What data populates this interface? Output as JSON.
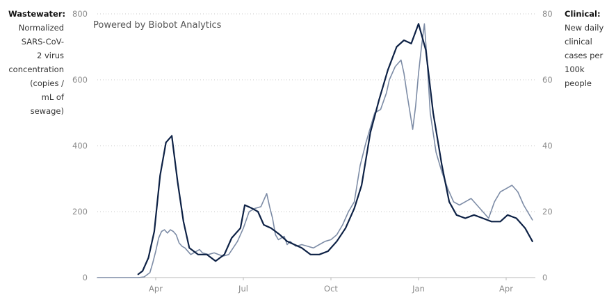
{
  "left_axis_label": {
    "head": "Wastewater:",
    "lines": [
      "Normalized",
      "SARS-CoV-",
      "2 virus",
      "concentration",
      "(copies /",
      "mL of",
      "sewage)"
    ]
  },
  "right_axis_label": {
    "head": "Clinical:",
    "lines": [
      "New daily",
      "clinical",
      "cases per",
      "100k",
      "people"
    ]
  },
  "watermark": "Powered by Biobot Analytics",
  "chart_data": {
    "type": "line",
    "x_ticks": [
      "Apr",
      "Jul",
      "Oct",
      "Jan",
      "Apr"
    ],
    "x_tick_months": [
      3,
      6,
      9,
      12,
      15
    ],
    "xlim_months": [
      1.0,
      16.0
    ],
    "y_left_ticks": [
      "0",
      "200",
      "400",
      "600",
      "800"
    ],
    "y_left_lim": [
      0,
      800
    ],
    "y_right_ticks": [
      "0",
      "20",
      "40",
      "60",
      "80"
    ],
    "y_right_lim": [
      0,
      80
    ],
    "grid": true,
    "series_colors": [
      "#7d8ca6",
      "#0d2145"
    ],
    "series": [
      {
        "axis": "left",
        "x_months": [
          1.0,
          2.0,
          2.4,
          2.6,
          2.8,
          2.9,
          3.0,
          3.1,
          3.2,
          3.3,
          3.4,
          3.5,
          3.6,
          3.7,
          3.8,
          3.9,
          4.0,
          4.2,
          4.5,
          4.6,
          4.8,
          5.0,
          5.3,
          5.5,
          5.8,
          6.0,
          6.2,
          6.4,
          6.6,
          6.8,
          6.9,
          7.0,
          7.1,
          7.2,
          7.4,
          7.5,
          7.6,
          7.8,
          8.0,
          8.2,
          8.4,
          8.6,
          8.8,
          9.0,
          9.2,
          9.4,
          9.6,
          9.8,
          10.0,
          10.2,
          10.5,
          10.7,
          10.9,
          11.0,
          11.2,
          11.4,
          11.5,
          11.6,
          11.8,
          11.9,
          12.0,
          12.1,
          12.2,
          12.3,
          12.4,
          12.6,
          12.8,
          13.0,
          13.2,
          13.4,
          13.6,
          13.8,
          14.0,
          14.2,
          14.4,
          14.6,
          14.8,
          15.0,
          15.2,
          15.4,
          15.6,
          15.9
        ],
        "values": [
          0,
          0,
          0,
          2,
          15,
          45,
          80,
          120,
          140,
          145,
          135,
          145,
          140,
          130,
          105,
          95,
          90,
          70,
          85,
          75,
          70,
          75,
          65,
          70,
          110,
          150,
          200,
          210,
          215,
          255,
          215,
          180,
          130,
          115,
          125,
          100,
          110,
          95,
          100,
          95,
          90,
          100,
          110,
          115,
          130,
          160,
          200,
          230,
          340,
          410,
          500,
          510,
          560,
          600,
          640,
          660,
          620,
          560,
          450,
          520,
          620,
          700,
          770,
          650,
          500,
          380,
          320,
          270,
          230,
          220,
          230,
          240,
          220,
          200,
          180,
          230,
          260,
          270,
          280,
          260,
          220,
          175
        ]
      },
      {
        "axis": "right",
        "x_months": [
          2.4,
          2.55,
          2.75,
          2.95,
          3.15,
          3.35,
          3.55,
          3.75,
          3.95,
          4.15,
          4.45,
          4.75,
          5.05,
          5.35,
          5.6,
          5.9,
          6.05,
          6.3,
          6.5,
          6.7,
          6.95,
          7.25,
          7.5,
          7.75,
          8.0,
          8.3,
          8.6,
          8.9,
          9.2,
          9.5,
          9.8,
          10.05,
          10.35,
          10.65,
          10.95,
          11.25,
          11.5,
          11.75,
          12.0,
          12.25,
          12.5,
          12.8,
          13.05,
          13.3,
          13.6,
          13.9,
          14.2,
          14.5,
          14.8,
          15.05,
          15.35,
          15.65,
          15.9
        ],
        "values": [
          1,
          2,
          6,
          14,
          31,
          41,
          43,
          29,
          17,
          9,
          7,
          7,
          5,
          7,
          12,
          15,
          22,
          21,
          20,
          16,
          15,
          13,
          11,
          10,
          9,
          7,
          7,
          8,
          11,
          15,
          21,
          28,
          44,
          54,
          63,
          70,
          72,
          71,
          77,
          69,
          50,
          34,
          23,
          19,
          18,
          19,
          18,
          17,
          17,
          19,
          18,
          15,
          11
        ]
      }
    ]
  }
}
